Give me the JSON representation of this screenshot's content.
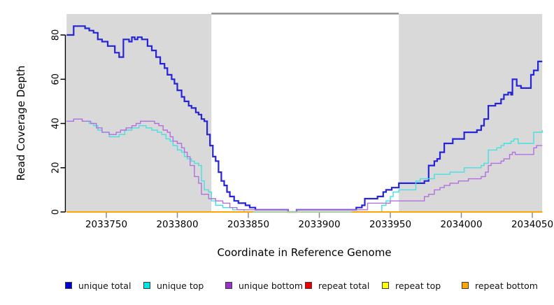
{
  "chart_data": {
    "type": "line",
    "subtype": "step",
    "title": "",
    "xlabel": "Coordinate in Reference Genome",
    "ylabel": "Read Coverage Depth",
    "xlim": [
      2033722,
      2034057
    ],
    "ylim": [
      0,
      89.5
    ],
    "x_ticks": [
      2033750,
      2033800,
      2033850,
      2033900,
      2033950,
      2034000,
      2034050
    ],
    "x_tick_labels": [
      "2033750",
      "2033800",
      "2033850",
      "2033900",
      "2033950",
      "2034000",
      "2034050"
    ],
    "y_ticks": [
      0,
      20,
      40,
      60,
      80
    ],
    "y_tick_labels": [
      "0",
      "20",
      "40",
      "60",
      "80"
    ],
    "grid": false,
    "plot_background": "#ffffff",
    "shaded_regions": [
      {
        "x1": 2033722,
        "x2": 2033824,
        "color": "#d9d9d9"
      },
      {
        "x1": 2033956,
        "x2": 2034057,
        "color": "#d9d9d9"
      }
    ],
    "top_marker": {
      "x1": 2033824,
      "x2": 2033956,
      "color": "#8e8e8e",
      "note": "horizontal bar across un-shaded repeat region at top of plot"
    },
    "baseline_blend_segment": {
      "x1": 2033853,
      "x2": 2033923,
      "color": "#a9c9a0",
      "note": "pale green stretch of the zero baseline inside repeat region"
    },
    "series": [
      {
        "name": "unique total",
        "color": "#2524d6",
        "width": 2.2,
        "points": [
          [
            2033722,
            80
          ],
          [
            2033727,
            84
          ],
          [
            2033735,
            83
          ],
          [
            2033738,
            82
          ],
          [
            2033741,
            81
          ],
          [
            2033744,
            78
          ],
          [
            2033747,
            77
          ],
          [
            2033751,
            75
          ],
          [
            2033756,
            72
          ],
          [
            2033759,
            70
          ],
          [
            2033762,
            78
          ],
          [
            2033766,
            77
          ],
          [
            2033768,
            79
          ],
          [
            2033770,
            78
          ],
          [
            2033772,
            79
          ],
          [
            2033775,
            78
          ],
          [
            2033779,
            75
          ],
          [
            2033782,
            73
          ],
          [
            2033785,
            70
          ],
          [
            2033788,
            67
          ],
          [
            2033791,
            65
          ],
          [
            2033793,
            62
          ],
          [
            2033796,
            60
          ],
          [
            2033798,
            58
          ],
          [
            2033800,
            55
          ],
          [
            2033803,
            52
          ],
          [
            2033805,
            50
          ],
          [
            2033808,
            48
          ],
          [
            2033810,
            47
          ],
          [
            2033813,
            45
          ],
          [
            2033815,
            44
          ],
          [
            2033817,
            42
          ],
          [
            2033819,
            41
          ],
          [
            2033821,
            35
          ],
          [
            2033823,
            30
          ],
          [
            2033825,
            25
          ],
          [
            2033827,
            23
          ],
          [
            2033829,
            18
          ],
          [
            2033831,
            14
          ],
          [
            2033833,
            12
          ],
          [
            2033835,
            9
          ],
          [
            2033837,
            7
          ],
          [
            2033840,
            5
          ],
          [
            2033843,
            4
          ],
          [
            2033848,
            3
          ],
          [
            2033851,
            2
          ],
          [
            2033855,
            1
          ],
          [
            2033878,
            0
          ],
          [
            2033884,
            1
          ],
          [
            2033926,
            2
          ],
          [
            2033930,
            3
          ],
          [
            2033932,
            6
          ],
          [
            2033941,
            7
          ],
          [
            2033945,
            9
          ],
          [
            2033947,
            10
          ],
          [
            2033951,
            11
          ],
          [
            2033956,
            13
          ],
          [
            2033974,
            14
          ],
          [
            2033977,
            21
          ],
          [
            2033981,
            23
          ],
          [
            2033983,
            24
          ],
          [
            2033985,
            27
          ],
          [
            2033988,
            31
          ],
          [
            2033994,
            33
          ],
          [
            2034002,
            36
          ],
          [
            2034011,
            37
          ],
          [
            2034014,
            39
          ],
          [
            2034016,
            42
          ],
          [
            2034019,
            48
          ],
          [
            2034024,
            49
          ],
          [
            2034028,
            51
          ],
          [
            2034030,
            53
          ],
          [
            2034033,
            54
          ],
          [
            2034035,
            53
          ],
          [
            2034036,
            60
          ],
          [
            2034039,
            57
          ],
          [
            2034042,
            56
          ],
          [
            2034049,
            62
          ],
          [
            2034051,
            64
          ],
          [
            2034054,
            68
          ],
          [
            2034057,
            68
          ]
        ]
      },
      {
        "name": "unique top",
        "color": "#45e0e0",
        "width": 1.4,
        "points": [
          [
            2033722,
            41
          ],
          [
            2033727,
            42
          ],
          [
            2033733,
            41
          ],
          [
            2033738,
            40
          ],
          [
            2033741,
            39
          ],
          [
            2033744,
            37
          ],
          [
            2033747,
            36
          ],
          [
            2033752,
            34
          ],
          [
            2033759,
            35
          ],
          [
            2033763,
            37
          ],
          [
            2033768,
            38
          ],
          [
            2033773,
            39
          ],
          [
            2033778,
            38
          ],
          [
            2033782,
            37
          ],
          [
            2033786,
            36
          ],
          [
            2033789,
            35
          ],
          [
            2033792,
            33
          ],
          [
            2033795,
            32
          ],
          [
            2033797,
            30
          ],
          [
            2033800,
            28
          ],
          [
            2033803,
            27
          ],
          [
            2033805,
            25
          ],
          [
            2033807,
            24
          ],
          [
            2033810,
            23
          ],
          [
            2033812,
            22
          ],
          [
            2033815,
            21
          ],
          [
            2033817,
            14
          ],
          [
            2033819,
            10
          ],
          [
            2033822,
            9
          ],
          [
            2033824,
            5
          ],
          [
            2033827,
            3
          ],
          [
            2033832,
            2
          ],
          [
            2033839,
            1
          ],
          [
            2033847,
            0
          ],
          [
            2033944,
            3
          ],
          [
            2033947,
            5
          ],
          [
            2033950,
            7
          ],
          [
            2033952,
            9
          ],
          [
            2033956,
            10
          ],
          [
            2033968,
            14
          ],
          [
            2033971,
            15
          ],
          [
            2033981,
            17
          ],
          [
            2033992,
            18
          ],
          [
            2034002,
            20
          ],
          [
            2034014,
            21
          ],
          [
            2034016,
            22
          ],
          [
            2034019,
            28
          ],
          [
            2034025,
            29
          ],
          [
            2034028,
            30
          ],
          [
            2034030,
            31
          ],
          [
            2034035,
            32
          ],
          [
            2034037,
            33
          ],
          [
            2034040,
            31
          ],
          [
            2034051,
            36
          ],
          [
            2034057,
            37
          ]
        ]
      },
      {
        "name": "unique bottom",
        "color": "#b36fdf",
        "width": 1.4,
        "points": [
          [
            2033722,
            41
          ],
          [
            2033727,
            42
          ],
          [
            2033733,
            41
          ],
          [
            2033739,
            40
          ],
          [
            2033743,
            38
          ],
          [
            2033747,
            36
          ],
          [
            2033752,
            35
          ],
          [
            2033757,
            36
          ],
          [
            2033760,
            37
          ],
          [
            2033764,
            38
          ],
          [
            2033768,
            39
          ],
          [
            2033771,
            40
          ],
          [
            2033774,
            41
          ],
          [
            2033784,
            40
          ],
          [
            2033787,
            39
          ],
          [
            2033790,
            37
          ],
          [
            2033793,
            36
          ],
          [
            2033795,
            34
          ],
          [
            2033797,
            32
          ],
          [
            2033800,
            31
          ],
          [
            2033803,
            29
          ],
          [
            2033805,
            27
          ],
          [
            2033807,
            25
          ],
          [
            2033809,
            21
          ],
          [
            2033812,
            16
          ],
          [
            2033815,
            13
          ],
          [
            2033817,
            8
          ],
          [
            2033822,
            6
          ],
          [
            2033827,
            5
          ],
          [
            2033832,
            4
          ],
          [
            2033837,
            2
          ],
          [
            2033842,
            1
          ],
          [
            2033878,
            0
          ],
          [
            2033884,
            1
          ],
          [
            2033934,
            4
          ],
          [
            2033950,
            5
          ],
          [
            2033974,
            7
          ],
          [
            2033977,
            8
          ],
          [
            2033981,
            10
          ],
          [
            2033985,
            11
          ],
          [
            2033988,
            12
          ],
          [
            2033992,
            13
          ],
          [
            2033998,
            14
          ],
          [
            2034005,
            15
          ],
          [
            2034014,
            16
          ],
          [
            2034017,
            18
          ],
          [
            2034019,
            21
          ],
          [
            2034021,
            22
          ],
          [
            2034028,
            23
          ],
          [
            2034030,
            24
          ],
          [
            2034034,
            26
          ],
          [
            2034036,
            27
          ],
          [
            2034038,
            26
          ],
          [
            2034051,
            29
          ],
          [
            2034053,
            30
          ],
          [
            2034057,
            30
          ]
        ]
      },
      {
        "name": "repeat total",
        "color": "#ee0000",
        "width": 1.4,
        "points": [
          [
            2033722,
            0
          ],
          [
            2034057,
            0
          ]
        ]
      },
      {
        "name": "repeat top",
        "color": "#ffff00",
        "width": 1.4,
        "points": [
          [
            2033722,
            0
          ],
          [
            2034057,
            0
          ]
        ]
      },
      {
        "name": "repeat bottom",
        "color": "#ffa500",
        "width": 2.0,
        "points": [
          [
            2033722,
            0
          ],
          [
            2034057,
            0
          ]
        ]
      }
    ],
    "legend": [
      {
        "label": "unique total",
        "color": "#0000cd"
      },
      {
        "label": "unique top",
        "color": "#00e5e5"
      },
      {
        "label": "unique bottom",
        "color": "#9932cc"
      },
      {
        "label": "repeat total",
        "color": "#ee0000"
      },
      {
        "label": "repeat top",
        "color": "#ffff00"
      },
      {
        "label": "repeat bottom",
        "color": "#ffa500"
      }
    ],
    "legend_position": "bottom"
  }
}
